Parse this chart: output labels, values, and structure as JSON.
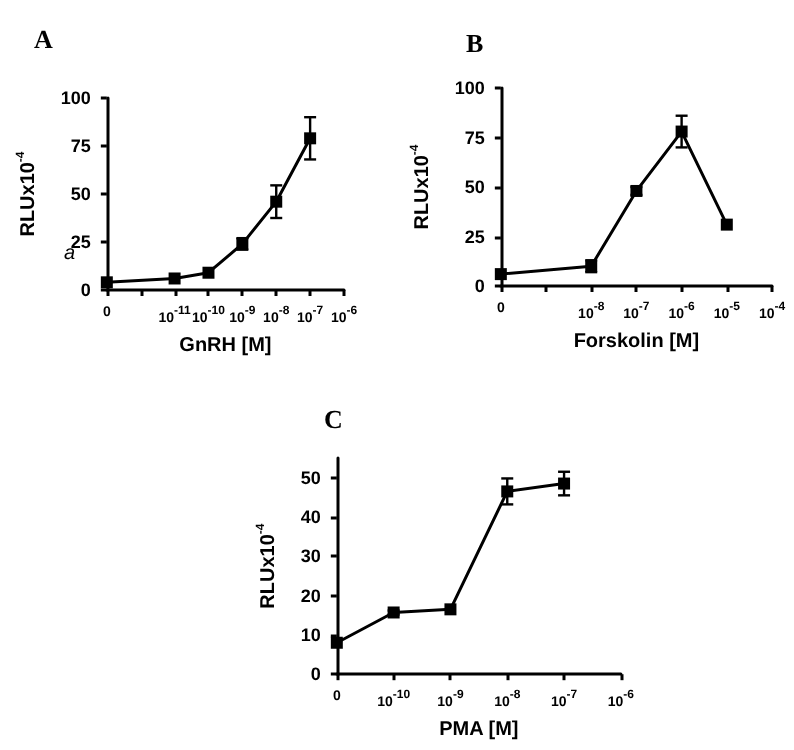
{
  "chart_data": [
    {
      "type": "line",
      "title": "A",
      "xlabel": "GnRH [M]",
      "ylabel": "RLUx10$^{-4}$",
      "categories": [
        "0",
        null,
        "10$^{-11}$",
        "10$^{-10}$",
        "10$^{-9}$",
        "10$^{-8}$",
        "10$^{-7}$",
        "10$^{-6}$"
      ],
      "series": [
        {
          "color": "#000000",
          "values": [
            4,
            null,
            6,
            9,
            24,
            46,
            79,
            null
          ],
          "errors": [
            null,
            null,
            null,
            null,
            3,
            8.5,
            11,
            null
          ]
        }
      ],
      "ylim": [
        0,
        100
      ],
      "yticks": [
        0,
        25,
        50,
        75,
        100
      ],
      "marker": "square",
      "annotations": [
        "a"
      ]
    },
    {
      "type": "line",
      "title": "B",
      "xlabel": "Forskolin [M]",
      "ylabel": "RLUx10$^{-4}$",
      "categories": [
        "0",
        null,
        "10$^{-8}$",
        "10$^{-7}$",
        "10$^{-6}$",
        "10$^{-5}$",
        "10$^{-4}$"
      ],
      "series": [
        {
          "color": "#000000",
          "values": [
            6,
            null,
            10,
            48,
            78,
            31,
            null
          ],
          "errors": [
            null,
            null,
            3,
            2,
            8,
            null,
            null
          ]
        }
      ],
      "ylim": [
        0,
        100
      ],
      "yticks": [
        0,
        25,
        50,
        75,
        100
      ],
      "marker": "square"
    },
    {
      "type": "line",
      "title": "C",
      "xlabel": "PMA [M]",
      "ylabel": "RLUx10$^{-4}$",
      "categories": [
        "0",
        "10$^{-10}$",
        "10$^{-9}$",
        "10$^{-8}$",
        "10$^{-7}$",
        "10$^{-6}$"
      ],
      "series": [
        {
          "color": "#000000",
          "values": [
            8,
            15.7,
            16.5,
            46.5,
            48.5,
            null
          ],
          "errors": [
            null,
            0.5,
            null,
            3.3,
            3,
            null
          ]
        }
      ],
      "ylim": [
        0,
        55
      ],
      "yticks": [
        0,
        10,
        20,
        30,
        40,
        50
      ],
      "marker": "square"
    }
  ]
}
